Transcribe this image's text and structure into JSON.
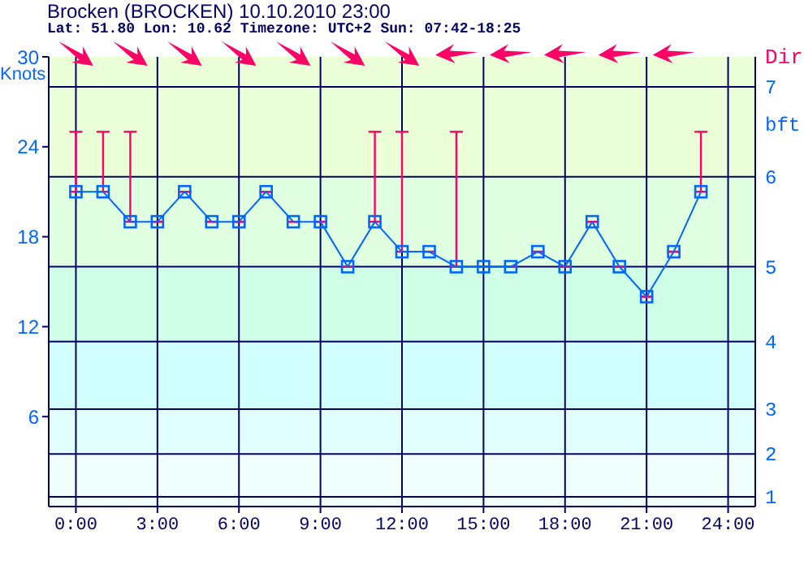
{
  "chart_data": {
    "type": "line",
    "title": "Brocken (BROCKEN) 10.10.2010 23:00",
    "subtitle": "Lat: 51.80 Lon: 10.62 Timezone: UTC+2 Sun: 07:42-18:25",
    "ylabel": "Knots",
    "annotations": [
      "Dir",
      "bft",
      "1",
      "2",
      "3",
      "4",
      "5",
      "6",
      "7"
    ],
    "x": [
      0,
      1,
      2,
      3,
      4,
      5,
      6,
      7,
      8,
      9,
      10,
      11,
      12,
      13,
      14,
      15,
      16,
      17,
      18,
      19,
      20,
      21,
      22,
      23
    ],
    "series": [
      {
        "color": "#0066ff",
        "values": [
          21,
          21,
          19,
          19,
          21,
          19,
          19,
          21,
          19,
          19,
          16,
          19,
          17,
          17,
          16,
          16,
          16,
          17,
          16,
          19,
          16,
          14,
          17,
          21
        ],
        "errors": [
          [
            21,
            25
          ],
          [
            21,
            25
          ],
          [
            19,
            25
          ],
          null,
          null,
          null,
          null,
          null,
          null,
          null,
          null,
          [
            19,
            25
          ],
          [
            17,
            25
          ],
          null,
          [
            16,
            25
          ],
          null,
          null,
          null,
          null,
          null,
          null,
          null,
          null,
          [
            21,
            25
          ]
        ]
      }
    ],
    "xlim": [
      -1,
      25
    ],
    "xticks": [
      {
        "value": 0,
        "label": "0:00"
      },
      {
        "value": 3,
        "label": "3:00"
      },
      {
        "value": 6,
        "label": "6:00"
      },
      {
        "value": 9,
        "label": "9:00"
      },
      {
        "value": 12,
        "label": "12:00"
      },
      {
        "value": 15,
        "label": "15:00"
      },
      {
        "value": 18,
        "label": "18:00"
      },
      {
        "value": 21,
        "label": "21:00"
      },
      {
        "value": 24,
        "label": "24:00"
      }
    ],
    "ylim": [
      0,
      30
    ],
    "yticks": [
      6,
      12,
      18,
      24,
      30
    ],
    "bands": [
      {
        "axis": "y",
        "from": 0,
        "to": 3.5,
        "color": "#f0fffe"
      },
      {
        "axis": "y",
        "from": 3.5,
        "to": 6.5,
        "color": "#e0fffe"
      },
      {
        "axis": "y",
        "from": 6.5,
        "to": 11,
        "color": "#d0fffe"
      },
      {
        "axis": "y",
        "from": 11,
        "to": 16,
        "color": "#d0ffe8"
      },
      {
        "axis": "y",
        "from": 16,
        "to": 22,
        "color": "#e0ffe0"
      },
      {
        "axis": "y",
        "from": 22,
        "to": 30,
        "color": "#eaffd8"
      }
    ],
    "ref_lines": [
      {
        "axis": "y",
        "value": 0.65,
        "color": "#000066"
      },
      {
        "axis": "y",
        "value": 3.5,
        "color": "#000066"
      },
      {
        "axis": "y",
        "value": 6.5,
        "color": "#000066"
      },
      {
        "axis": "y",
        "value": 11,
        "color": "#000066"
      },
      {
        "axis": "y",
        "value": 16,
        "color": "#000066"
      },
      {
        "axis": "y",
        "value": 22,
        "color": "#000066"
      },
      {
        "axis": "y",
        "value": 28,
        "color": "#000066"
      }
    ],
    "grid": "x",
    "marker": "square",
    "line_style": "solid"
  }
}
